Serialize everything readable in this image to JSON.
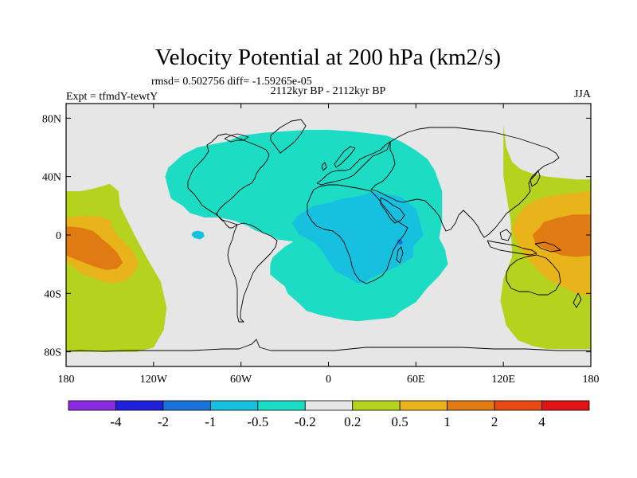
{
  "chart_data": {
    "type": "heatmap",
    "title": "Velocity Potential at 200 hPa (km2/s)",
    "stats_line": "rmsd= 0.502756 diff= -1.59265e-05",
    "left_label": "Expt = tfmdY-tewtY",
    "center_label": "2112kyr BP - 2112kyr BP",
    "right_label": "JJA",
    "projection": "cylindrical-equidistant",
    "xlim": [
      -180,
      180
    ],
    "ylim": [
      -90,
      90
    ],
    "x_ticks": [
      {
        "value": -180,
        "label": "180"
      },
      {
        "value": -120,
        "label": "120W"
      },
      {
        "value": -60,
        "label": "60W"
      },
      {
        "value": 0,
        "label": "0"
      },
      {
        "value": 60,
        "label": "60E"
      },
      {
        "value": 120,
        "label": "120E"
      },
      {
        "value": 180,
        "label": "180"
      }
    ],
    "y_ticks": [
      {
        "value": 80,
        "label": "80N"
      },
      {
        "value": 40,
        "label": "40N"
      },
      {
        "value": 0,
        "label": "0"
      },
      {
        "value": -40,
        "label": "40S"
      },
      {
        "value": -80,
        "label": "80S"
      }
    ],
    "colorbar": {
      "colors": [
        "#8a2be2",
        "#2020d8",
        "#1a73d9",
        "#18c0e0",
        "#1cdcc4",
        "#e6e6e6",
        "#b4d21e",
        "#e8b41a",
        "#e07a12",
        "#e84a16",
        "#e01414"
      ],
      "labels": [
        "-4",
        "-2",
        "-1",
        "-0.5",
        "-0.2",
        "0.2",
        "0.5",
        "1",
        "2",
        "4"
      ]
    },
    "regions": [
      {
        "name": "west-pacific-band-east",
        "value": 0.35,
        "lon": [
          120,
          122,
          126,
          132,
          140,
          150,
          160,
          170,
          180,
          180,
          170,
          160,
          150,
          140,
          130,
          122,
          118,
          120,
          126,
          125,
          120
        ],
        "lat": [
          75,
          60,
          50,
          45,
          42,
          40,
          39,
          38,
          38,
          -78,
          -78,
          -78,
          -78,
          -76,
          -72,
          -62,
          -45,
          -30,
          -15,
          10,
          40
        ]
      },
      {
        "name": "west-pacific-band-west",
        "value": 0.35,
        "lon": [
          -180,
          -170,
          -160,
          -150,
          -144,
          -143,
          -138,
          -133,
          -125,
          -115,
          -111,
          -113,
          -120,
          -132,
          -150,
          -165,
          -180
        ],
        "lat": [
          30,
          30,
          32,
          35,
          30,
          20,
          10,
          0,
          -15,
          -32,
          -50,
          -65,
          -77,
          -80,
          -80,
          -80,
          -80
        ]
      },
      {
        "name": "pacific-high-east",
        "value": 0.75,
        "lon": [
          128,
          135,
          145,
          160,
          172,
          180,
          180,
          170,
          160,
          150,
          140,
          132,
          128,
          126
        ],
        "lat": [
          10,
          20,
          25,
          28,
          29,
          30,
          -42,
          -40,
          -35,
          -30,
          -20,
          -10,
          -2,
          4
        ]
      },
      {
        "name": "pacific-high-west",
        "value": 0.75,
        "lon": [
          -180,
          -168,
          -160,
          -155,
          -150,
          -148,
          -145,
          -140,
          -135,
          -130,
          -135,
          -142,
          -150,
          -160,
          -170,
          -180
        ],
        "lat": [
          12,
          13,
          13,
          12,
          10,
          5,
          0,
          -5,
          -10,
          -20,
          -28,
          -32,
          -33,
          -30,
          -26,
          -18
        ]
      },
      {
        "name": "pacific-max-east",
        "value": 1.5,
        "lon": [
          148,
          158,
          168,
          180,
          180,
          170,
          160,
          150,
          142,
          140,
          145
        ],
        "lat": [
          9,
          12,
          14,
          14,
          -14,
          -15,
          -14,
          -10,
          -6,
          0,
          5
        ]
      },
      {
        "name": "pacific-max-west",
        "value": 1.5,
        "lon": [
          -180,
          -170,
          -162,
          -158,
          -155,
          -150,
          -145,
          -141,
          -145,
          -152,
          -160,
          -170,
          -180
        ],
        "lat": [
          6,
          5,
          3,
          0,
          -3,
          -7,
          -12,
          -19,
          -23,
          -24,
          -22,
          -18,
          -14
        ]
      },
      {
        "name": "atlantic-africa-low",
        "value": -0.35,
        "lon": [
          -112,
          -110,
          -100,
          -90,
          -80,
          -70,
          -60,
          -45,
          -30,
          -15,
          0,
          15,
          25,
          40,
          50,
          60,
          68,
          73,
          78,
          78,
          76,
          80,
          82,
          76,
          68,
          60,
          50,
          45,
          40,
          30,
          20,
          10,
          -5,
          -15,
          -20,
          -28,
          -30,
          -34,
          -40,
          -40,
          -38,
          -30,
          -20,
          -5,
          10,
          15,
          10,
          0,
          -20,
          -35,
          -40,
          -50,
          -55,
          -65,
          -75,
          -85,
          -95,
          -100,
          -108,
          -110,
          -112
        ],
        "lat": [
          40,
          46,
          55,
          60,
          62,
          64,
          68,
          70,
          71,
          72,
          72,
          71,
          70,
          68,
          64,
          58,
          52,
          44,
          30,
          10,
          -2,
          -10,
          -20,
          -28,
          -36,
          -46,
          -52,
          -56,
          -57,
          -58,
          -59,
          -58,
          -55,
          -52,
          -47,
          -40,
          -35,
          -32,
          -27,
          -20,
          -15,
          -8,
          -2,
          2,
          2,
          -1,
          -5,
          -6,
          -5,
          -3,
          0,
          3,
          6,
          10,
          12,
          12,
          15,
          20,
          25,
          32,
          40
        ]
      },
      {
        "name": "atlantic-africa-core",
        "value": -0.75,
        "lon": [
          -20,
          -10,
          0,
          10,
          18,
          26,
          30,
          40,
          50,
          55,
          60,
          62,
          65,
          58,
          58,
          50,
          40,
          30,
          24,
          20,
          15,
          5,
          0,
          -5,
          -10,
          -15,
          -20,
          -23,
          -25,
          -22
        ],
        "lat": [
          14,
          20,
          22,
          25,
          26,
          28,
          30,
          28,
          26,
          22,
          18,
          12,
          0,
          -8,
          -15,
          -20,
          -25,
          -29,
          -33,
          -33,
          -30,
          -25,
          -18,
          -10,
          -5,
          -2,
          0,
          5,
          8,
          12
        ]
      },
      {
        "name": "small-low-caribbean",
        "value": -0.75,
        "lon": [
          -93,
          -90,
          -86,
          -85,
          -88,
          -92,
          -94
        ],
        "lat": [
          2,
          3,
          2,
          -1,
          -3,
          -2,
          0
        ]
      },
      {
        "name": "small-low-madagascar",
        "value": -1.5,
        "lon": [
          48,
          50,
          51,
          50,
          48,
          47
        ],
        "lat": [
          -3,
          -3,
          -5,
          -7,
          -6,
          -4
        ]
      }
    ]
  }
}
